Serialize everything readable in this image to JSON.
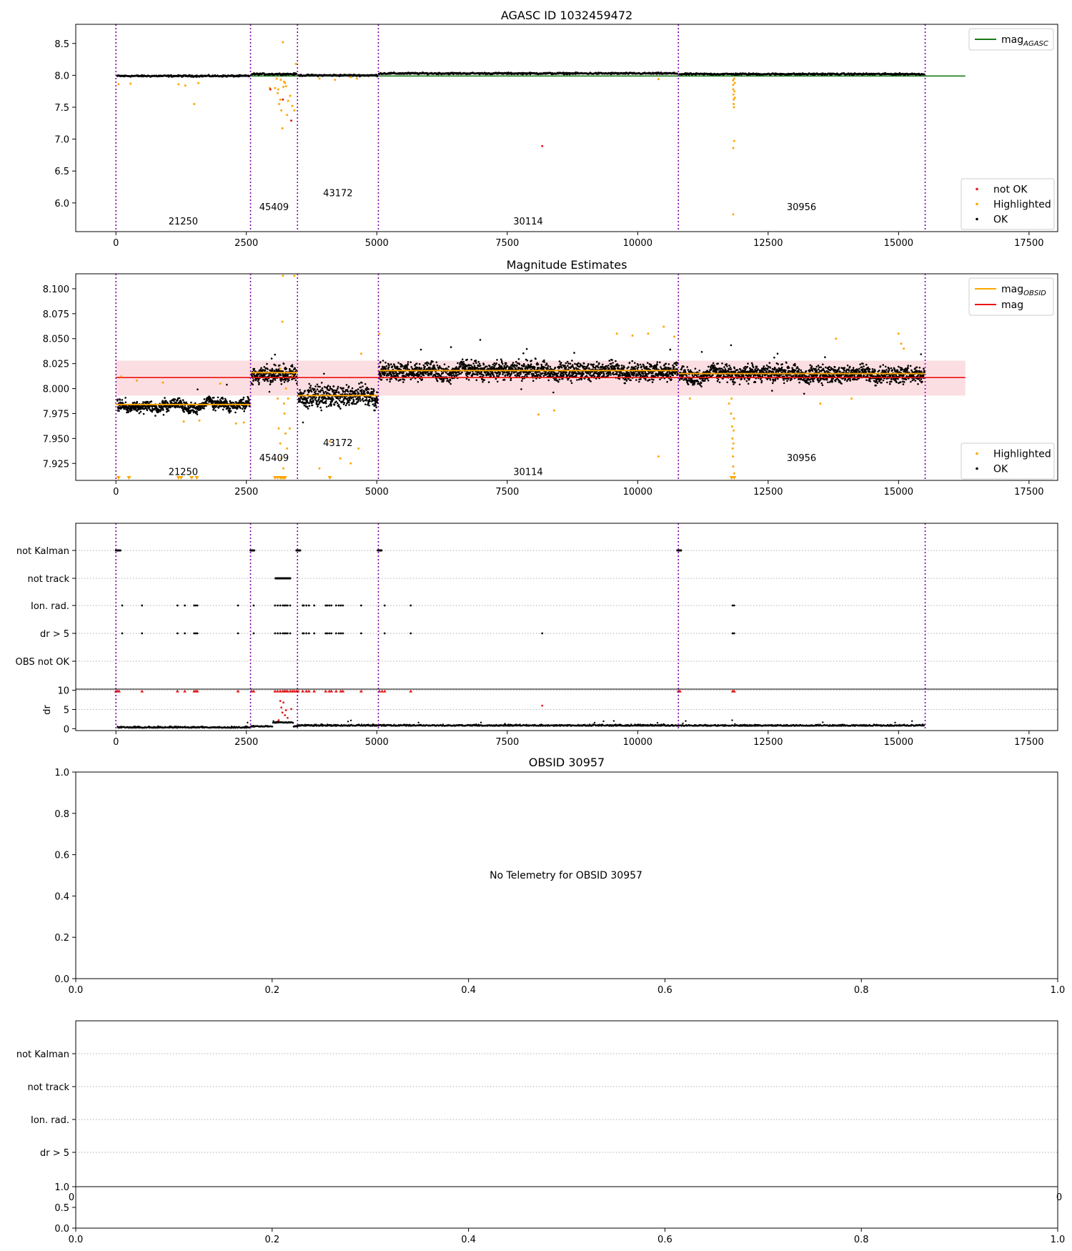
{
  "colors": {
    "ok": "#000000",
    "highlighted": "#ffa500",
    "not_ok": "#e31a1c",
    "agasc_line": "#1a7a1a",
    "obsid_line": "#ffa500",
    "mag_line": "#ee1111",
    "band": "#f9c8cf",
    "obsid_divider": "#7b00a8",
    "dark_fill": "#2a1405"
  },
  "obsid_boundaries": [
    0,
    2580,
    3480,
    5030,
    10780,
    15510
  ],
  "chart_data": [
    {
      "type": "scatter",
      "title": "AGASC ID 1032459472",
      "xlim": [
        -770,
        18050
      ],
      "ylim": [
        5.55,
        8.8
      ],
      "xticks": [
        0,
        2500,
        5000,
        7500,
        10000,
        12500,
        15000,
        17500
      ],
      "xtick_labels": [
        "0",
        "2500",
        "5000",
        "7500",
        "10000",
        "12500",
        "15000",
        "17500"
      ],
      "yticks": [
        6.0,
        6.5,
        7.0,
        7.5,
        8.0,
        8.5
      ],
      "ytick_labels": [
        "6.0",
        "6.5",
        "7.0",
        "7.5",
        "8.0",
        "8.5"
      ],
      "lines": [
        {
          "name": "mag",
          "sub": "AGASC",
          "y": 7.99,
          "x0": 0,
          "x1": 16280
        }
      ],
      "segments": [
        {
          "x0": 30,
          "x1": 2570,
          "y": 7.99
        },
        {
          "x0": 2600,
          "x1": 3470,
          "y": 8.02
        },
        {
          "x0": 3500,
          "x1": 5020,
          "y": 8.0
        },
        {
          "x0": 5040,
          "x1": 10770,
          "y": 8.03
        },
        {
          "x0": 10800,
          "x1": 15500,
          "y": 8.02
        }
      ],
      "highlighted": [
        [
          50,
          7.86
        ],
        [
          280,
          7.87
        ],
        [
          1200,
          7.86
        ],
        [
          1330,
          7.84
        ],
        [
          1500,
          7.55
        ],
        [
          1580,
          7.88
        ],
        [
          2950,
          7.8
        ],
        [
          3050,
          7.8
        ],
        [
          3100,
          7.72
        ],
        [
          3130,
          7.55
        ],
        [
          3150,
          7.62
        ],
        [
          3170,
          7.45
        ],
        [
          3190,
          7.17
        ],
        [
          3200,
          8.52
        ],
        [
          3220,
          7.9
        ],
        [
          3240,
          7.88
        ],
        [
          3260,
          7.83
        ],
        [
          3300,
          7.6
        ],
        [
          3340,
          7.68
        ],
        [
          3380,
          7.52
        ],
        [
          3420,
          7.45
        ],
        [
          3450,
          8.18
        ],
        [
          3080,
          7.95
        ],
        [
          3160,
          7.93
        ],
        [
          3210,
          7.82
        ],
        [
          3110,
          7.78
        ],
        [
          3280,
          7.38
        ],
        [
          3900,
          7.95
        ],
        [
          4200,
          7.93
        ],
        [
          4500,
          7.97
        ],
        [
          4620,
          7.95
        ],
        [
          10400,
          7.94
        ],
        [
          11830,
          7.92
        ],
        [
          11830,
          7.85
        ],
        [
          11830,
          7.78
        ],
        [
          11835,
          7.7
        ],
        [
          11840,
          7.62
        ],
        [
          11840,
          7.55
        ],
        [
          11845,
          7.5
        ],
        [
          11850,
          7.95
        ],
        [
          11860,
          7.88
        ],
        [
          11855,
          7.75
        ],
        [
          11860,
          7.65
        ],
        [
          11830,
          6.86
        ],
        [
          11850,
          6.97
        ],
        [
          11830,
          5.82
        ]
      ],
      "not_ok": [
        [
          2960,
          7.78
        ],
        [
          3200,
          7.62
        ],
        [
          3360,
          7.29
        ],
        [
          8170,
          6.89
        ]
      ],
      "annotations": [
        {
          "text": "21250",
          "x": 1290,
          "y": 5.72
        },
        {
          "text": "45409",
          "x": 3030,
          "y": 5.94
        },
        {
          "text": "43172",
          "x": 4255,
          "y": 6.16
        },
        {
          "text": "30114",
          "x": 7900,
          "y": 5.72
        },
        {
          "text": "30956",
          "x": 13140,
          "y": 5.94
        }
      ],
      "legend_top": [
        {
          "label": "mag",
          "sub": "AGASC",
          "kind": "line",
          "color_key": "agasc_line"
        }
      ],
      "legend_bottom": [
        {
          "label": "not OK",
          "kind": "dot",
          "color_key": "not_ok"
        },
        {
          "label": "Highlighted",
          "kind": "dot",
          "color_key": "highlighted"
        },
        {
          "label": "OK",
          "kind": "dot",
          "color_key": "ok"
        }
      ]
    },
    {
      "type": "scatter",
      "title": "Magnitude Estimates",
      "xlim": [
        -770,
        18050
      ],
      "ylim": [
        7.908,
        8.115
      ],
      "xticks": [
        0,
        2500,
        5000,
        7500,
        10000,
        12500,
        15000,
        17500
      ],
      "xtick_labels": [
        "0",
        "2500",
        "5000",
        "7500",
        "10000",
        "12500",
        "15000",
        "17500"
      ],
      "yticks": [
        7.925,
        7.95,
        7.975,
        8.0,
        8.025,
        8.05,
        8.075,
        8.1
      ],
      "ytick_labels": [
        "7.925",
        "7.950",
        "7.975",
        "8.000",
        "8.025",
        "8.050",
        "8.075",
        "8.100"
      ],
      "band": {
        "y0": 7.993,
        "y1": 8.028,
        "x0": 0,
        "x1": 16280
      },
      "mag_line": {
        "name": "mag",
        "y": 8.011,
        "x0": 0,
        "x1": 16280
      },
      "obsid_means": [
        {
          "x0": 0,
          "x1": 2580,
          "y": 7.984
        },
        {
          "x0": 2580,
          "x1": 3480,
          "y": 8.016
        },
        {
          "x0": 3480,
          "x1": 5030,
          "y": 7.993
        },
        {
          "x0": 5030,
          "x1": 10780,
          "y": 8.018
        },
        {
          "x0": 10780,
          "x1": 15510,
          "y": 8.015
        }
      ],
      "segments": [
        {
          "x0": 30,
          "x1": 2570,
          "mid": 7.984,
          "amp": 0.008,
          "hi": 8.01,
          "lo": 7.968
        },
        {
          "x0": 2600,
          "x1": 3470,
          "mid": 8.014,
          "amp": 0.012,
          "hi": 8.04,
          "lo": 7.98
        },
        {
          "x0": 3500,
          "x1": 5020,
          "mid": 7.993,
          "amp": 0.016,
          "hi": 8.035,
          "lo": 7.955
        },
        {
          "x0": 5040,
          "x1": 10770,
          "mid": 8.018,
          "amp": 0.013,
          "hi": 8.05,
          "lo": 7.985
        },
        {
          "x0": 10800,
          "x1": 15500,
          "mid": 8.015,
          "amp": 0.012,
          "hi": 8.045,
          "lo": 7.985
        }
      ],
      "highlighted": [
        [
          100,
          8.012
        ],
        [
          400,
          8.008
        ],
        [
          900,
          8.006
        ],
        [
          1300,
          7.967
        ],
        [
          1600,
          7.968
        ],
        [
          2000,
          8.005
        ],
        [
          2300,
          7.965
        ],
        [
          2450,
          7.966
        ],
        [
          3100,
          7.99
        ],
        [
          3120,
          7.96
        ],
        [
          3150,
          7.945
        ],
        [
          3170,
          7.93
        ],
        [
          3190,
          8.067
        ],
        [
          3200,
          8.113
        ],
        [
          3210,
          7.92
        ],
        [
          3230,
          7.975
        ],
        [
          3250,
          7.955
        ],
        [
          3280,
          7.94
        ],
        [
          3300,
          7.99
        ],
        [
          3330,
          7.96
        ],
        [
          3420,
          8.113
        ],
        [
          3380,
          8.013
        ],
        [
          3150,
          8.02
        ],
        [
          3220,
          7.985
        ],
        [
          3260,
          8.0
        ],
        [
          3900,
          7.92
        ],
        [
          4100,
          7.947
        ],
        [
          4300,
          7.93
        ],
        [
          4500,
          7.925
        ],
        [
          4650,
          7.94
        ],
        [
          4700,
          8.035
        ],
        [
          5050,
          8.055
        ],
        [
          8100,
          7.974
        ],
        [
          8400,
          7.978
        ],
        [
          9600,
          8.055
        ],
        [
          9900,
          8.053
        ],
        [
          10200,
          8.055
        ],
        [
          10400,
          7.932
        ],
        [
          10500,
          8.062
        ],
        [
          10700,
          8.052
        ],
        [
          11000,
          7.99
        ],
        [
          11750,
          7.985
        ],
        [
          11790,
          7.975
        ],
        [
          11810,
          7.962
        ],
        [
          11815,
          7.95
        ],
        [
          11820,
          7.94
        ],
        [
          11825,
          7.932
        ],
        [
          11830,
          7.922
        ],
        [
          11835,
          7.945
        ],
        [
          11840,
          7.958
        ],
        [
          11845,
          7.97
        ],
        [
          11850,
          7.915
        ],
        [
          11800,
          7.99
        ],
        [
          13500,
          7.985
        ],
        [
          13800,
          8.05
        ],
        [
          14100,
          7.99
        ],
        [
          15000,
          8.055
        ],
        [
          15050,
          8.045
        ],
        [
          15100,
          8.04
        ]
      ],
      "clipped_low": [
        50,
        250,
        1200,
        1250,
        1450,
        1550,
        3050,
        3100,
        3150,
        3180,
        3210,
        3240,
        4100,
        11800,
        11850
      ],
      "annotations": [
        {
          "text": "21250",
          "x": 1290,
          "y": 7.917
        },
        {
          "text": "45409",
          "x": 3030,
          "y": 7.931
        },
        {
          "text": "43172",
          "x": 4255,
          "y": 7.946
        },
        {
          "text": "30114",
          "x": 7900,
          "y": 7.917
        },
        {
          "text": "30956",
          "x": 13140,
          "y": 7.931
        }
      ],
      "legend_top": [
        {
          "label": "mag",
          "sub": "OBSID",
          "kind": "line",
          "color_key": "obsid_line"
        },
        {
          "label": "mag",
          "kind": "line",
          "color_key": "mag_line"
        }
      ],
      "legend_bottom": [
        {
          "label": "Highlighted",
          "kind": "dot",
          "color_key": "highlighted"
        },
        {
          "label": "OK",
          "kind": "dot",
          "color_key": "ok"
        }
      ]
    },
    {
      "type": "scatter",
      "title": "",
      "xlim": [
        -770,
        18050
      ],
      "flag_labels": [
        "not Kalman",
        "not track",
        "Ion. rad.",
        "dr > 5",
        "OBS not OK"
      ],
      "flags": {
        "not Kalman": [
          [
            0,
            90
          ],
          [
            2580,
            2650
          ],
          [
            3460,
            3540
          ],
          [
            5020,
            5100
          ],
          [
            10760,
            10840
          ]
        ],
        "not track": [
          [
            3060,
            3340
          ]
        ],
        "Ion. rad.": [
          [
            120
          ],
          [
            500
          ],
          [
            1180
          ],
          [
            1320
          ],
          [
            1500
          ],
          [
            1530
          ],
          [
            1560
          ],
          [
            2340
          ],
          [
            2640
          ],
          [
            3050
          ],
          [
            3100
          ],
          [
            3150
          ],
          [
            3200
          ],
          [
            3230
          ],
          [
            3260
          ],
          [
            3290
          ],
          [
            3340
          ],
          [
            3580
          ],
          [
            3600
          ],
          [
            3650
          ],
          [
            3700
          ],
          [
            3800
          ],
          [
            4020
          ],
          [
            4050
          ],
          [
            4090
          ],
          [
            4130
          ],
          [
            4220
          ],
          [
            4270
          ],
          [
            4310
          ],
          [
            4350
          ],
          [
            4700
          ],
          [
            5150
          ],
          [
            5650
          ],
          [
            11820
          ],
          [
            11850
          ]
        ],
        "dr > 5": [
          [
            120
          ],
          [
            500
          ],
          [
            1180
          ],
          [
            1320
          ],
          [
            1500
          ],
          [
            1530
          ],
          [
            1560
          ],
          [
            2340
          ],
          [
            2640
          ],
          [
            3050
          ],
          [
            3100
          ],
          [
            3150
          ],
          [
            3200
          ],
          [
            3230
          ],
          [
            3260
          ],
          [
            3290
          ],
          [
            3340
          ],
          [
            3580
          ],
          [
            3600
          ],
          [
            3650
          ],
          [
            3700
          ],
          [
            3800
          ],
          [
            4020
          ],
          [
            4050
          ],
          [
            4090
          ],
          [
            4130
          ],
          [
            4220
          ],
          [
            4270
          ],
          [
            4310
          ],
          [
            4350
          ],
          [
            4700
          ],
          [
            5150
          ],
          [
            5650
          ],
          [
            8170
          ],
          [
            11820
          ],
          [
            11850
          ]
        ],
        "OBS not OK": []
      },
      "dr": {
        "ylabel": "dr",
        "ylim": [
          -0.5,
          10.3
        ],
        "yticks": [
          0,
          5,
          10
        ],
        "ytick_labels": [
          "0",
          "5",
          "10"
        ],
        "clipped_x": [
          0,
          30,
          60,
          500,
          1180,
          1320,
          1500,
          1530,
          1560,
          2340,
          2600,
          2640,
          3050,
          3100,
          3150,
          3200,
          3230,
          3260,
          3290,
          3340,
          3380,
          3420,
          3460,
          3490,
          3580,
          3650,
          3700,
          3800,
          4020,
          4090,
          4130,
          4220,
          4310,
          4350,
          4700,
          5050,
          5100,
          5150,
          5650,
          10780,
          10810,
          11820,
          11850
        ],
        "red_points": [
          [
            3150,
            7.2
          ],
          [
            3170,
            5.5
          ],
          [
            3190,
            4.2
          ],
          [
            3210,
            6.8
          ],
          [
            3240,
            3.5
          ],
          [
            3260,
            4.8
          ],
          [
            3290,
            2.8
          ],
          [
            3120,
            2.2
          ],
          [
            3360,
            5.1
          ],
          [
            8170,
            6.0
          ]
        ]
      }
    },
    {
      "type": "table",
      "title": "OBSID 30957",
      "message": "No Telemetry for OBSID 30957",
      "xticks": [
        "0.0",
        "0.2",
        "0.4",
        "0.6",
        "0.8",
        "1.0"
      ],
      "yticks": [
        "0.0",
        "0.2",
        "0.4",
        "0.6",
        "0.8",
        "1.0"
      ]
    },
    {
      "type": "table",
      "title": "",
      "flag_labels": [
        "not Kalman",
        "not track",
        "Ion. rad.",
        "dr > 5"
      ],
      "overlap_ticks": [
        "0",
        "0"
      ],
      "dr_yticks": [
        "0.0",
        "0.5",
        "1.0"
      ],
      "xticks": [
        "0.0",
        "0.2",
        "0.4",
        "0.6",
        "0.8",
        "1.0"
      ]
    }
  ]
}
